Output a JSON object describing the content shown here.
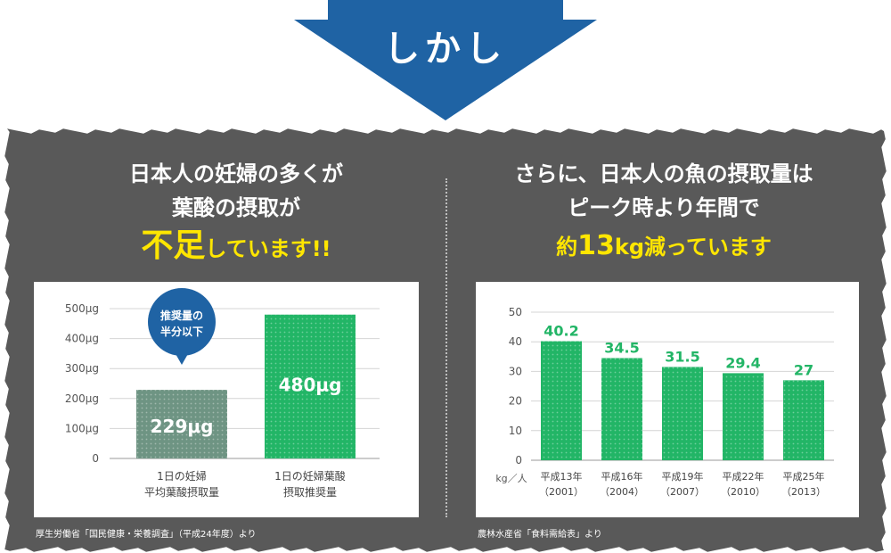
{
  "banner": {
    "text": "しかし"
  },
  "left": {
    "heading_line1": "日本人の妊婦の多くが",
    "heading_line2": "葉酸の摂取が",
    "heading_hl_big": "不足",
    "heading_hl_rest": "しています!!",
    "callout_line1": "推奨量の",
    "callout_line2": "半分以下",
    "source": "厚生労働省「国民健康・栄養調査」（平成24年度）より"
  },
  "right": {
    "heading_line1": "さらに、日本人の魚の摂取量は",
    "heading_line2": "ピーク時より年間で",
    "heading_hl_pre": "約",
    "heading_hl_num": "13",
    "heading_hl_post": "kg減っています",
    "source": "農林水産省「食料需給表」より"
  },
  "colors": {
    "panel": "#595959",
    "arrow": "#1f63a4",
    "accent_green": "#22b566",
    "muted_green": "#6e9483",
    "highlight_yellow": "#ffe600"
  },
  "chart_data": [
    {
      "type": "bar",
      "categories": [
        [
          "1日の妊婦",
          "平均葉酸摂取量"
        ],
        [
          "1日の妊婦葉酸",
          "摂取推奨量"
        ]
      ],
      "values": [
        229,
        480
      ],
      "value_labels": [
        "229μg",
        "480μg"
      ],
      "bar_colors": [
        "#6e9483",
        "#22b566"
      ],
      "ytick_labels": [
        "0",
        "100μg",
        "200μg",
        "300μg",
        "400μg",
        "500μg"
      ],
      "ylim": [
        0,
        500
      ],
      "grid": true
    },
    {
      "type": "bar",
      "categories": [
        [
          "平成13年",
          "（2001）"
        ],
        [
          "平成16年",
          "（2004）"
        ],
        [
          "平成19年",
          "（2007）"
        ],
        [
          "平成22年",
          "（2010）"
        ],
        [
          "平成25年",
          "（2013）"
        ]
      ],
      "values": [
        40.2,
        34.5,
        31.5,
        29.4,
        27
      ],
      "value_labels": [
        "40.2",
        "34.5",
        "31.5",
        "29.4",
        "27"
      ],
      "bar_color": "#22b566",
      "ytick_labels": [
        "0",
        "10",
        "20",
        "30",
        "40",
        "50"
      ],
      "ylim": [
        0,
        50
      ],
      "yunit": "kg／人",
      "grid": true
    }
  ]
}
